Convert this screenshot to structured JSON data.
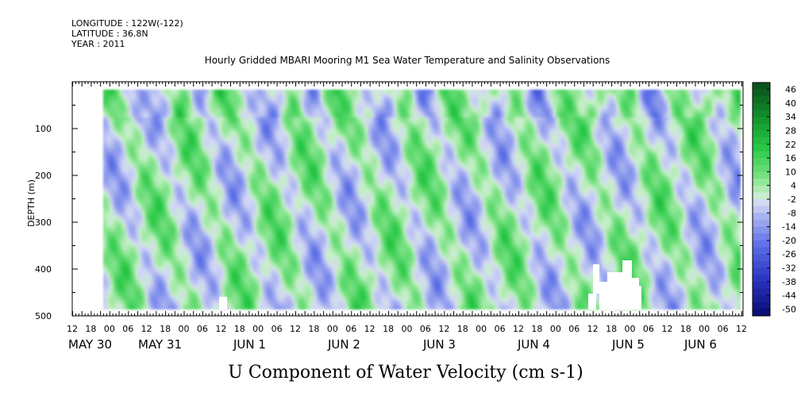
{
  "header": {
    "longitude": "LONGITUDE : 122W(-122)",
    "latitude": "LATITUDE : 36.8N",
    "year": "YEAR : 2011",
    "title": "Hourly Gridded MBARI Mooring M1 Sea Water Temperature and Salinity Observations"
  },
  "chart_data": {
    "type": "heatmap",
    "title": "Hourly Gridded MBARI Mooring M1 Sea Water Temperature and Salinity Observations",
    "xlabel": "U Component of Water Velocity (cm s-1)",
    "ylabel": "DEPTH (m)",
    "ylim": [
      500,
      0
    ],
    "y_ticks": [
      100,
      200,
      300,
      400,
      500
    ],
    "y_tick_labels": [
      "100",
      "200",
      "300",
      "400",
      "500"
    ],
    "x_hour_labels": [
      "12",
      "18",
      "00",
      "06",
      "12",
      "18",
      "00",
      "06",
      "12",
      "18",
      "00",
      "06",
      "12",
      "18",
      "00",
      "06",
      "12",
      "18",
      "00",
      "06",
      "12",
      "18",
      "00",
      "06",
      "12",
      "18",
      "00",
      "06",
      "12",
      "18",
      "00",
      "06",
      "12",
      "18",
      "00",
      "06",
      "12"
    ],
    "x_day_labels": [
      "MAY 30",
      "MAY 31",
      "JUN 1",
      "JUN 2",
      "JUN 3",
      "JUN 4",
      "JUN 5",
      "JUN 6"
    ],
    "colorbar_labels": [
      "46",
      "40",
      "34",
      "28",
      "22",
      "16",
      "10",
      "4",
      "-2",
      "-8",
      "-14",
      "-20",
      "-26",
      "-32",
      "-38",
      "-44",
      "-50"
    ],
    "value_range": [
      -50,
      50
    ],
    "palette": {
      "negative": "#1c1f8c",
      "near_zero": "#cfd8f4",
      "positive": "#0b5a1c"
    }
  }
}
